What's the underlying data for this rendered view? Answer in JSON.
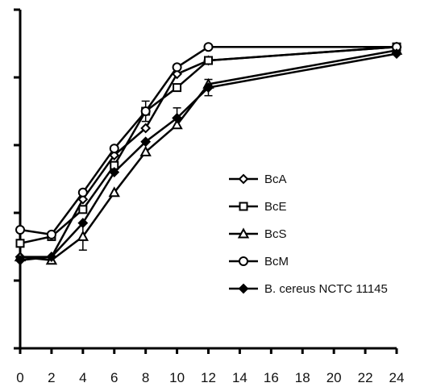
{
  "chart_data": {
    "type": "line",
    "title": "",
    "xlabel": "",
    "ylabel": "",
    "x_ticks": [
      "0",
      "2",
      "4",
      "6",
      "8",
      "10",
      "12",
      "14",
      "16",
      "18",
      "20",
      "22",
      "24"
    ],
    "xlim": [
      0,
      24
    ],
    "ylim": [
      0,
      5
    ],
    "y_tick_values": [
      0,
      1,
      2,
      3,
      4,
      5
    ],
    "y_tick_labels_shown": false,
    "grid": false,
    "legend_position": "center-right",
    "series": [
      {
        "name": "BcA",
        "marker": "diamond-open",
        "x": [
          0,
          2,
          4,
          6,
          8,
          10,
          12,
          24
        ],
        "y": [
          1.35,
          1.35,
          2.2,
          2.85,
          3.25,
          4.05,
          4.25,
          4.45
        ]
      },
      {
        "name": "BcE",
        "marker": "square-open",
        "x": [
          0,
          2,
          4,
          6,
          8,
          10,
          12,
          24
        ],
        "y": [
          1.55,
          1.65,
          2.05,
          2.7,
          3.5,
          3.85,
          4.25,
          4.45
        ]
      },
      {
        "name": "BcS",
        "marker": "triangle-open",
        "x": [
          0,
          2,
          4,
          6,
          8,
          10,
          12,
          24
        ],
        "y": [
          1.35,
          1.3,
          1.65,
          2.3,
          2.9,
          3.3,
          3.9,
          4.4
        ]
      },
      {
        "name": "BcM",
        "marker": "circle-open",
        "x": [
          0,
          2,
          4,
          6,
          8,
          10,
          12,
          24
        ],
        "y": [
          1.75,
          1.68,
          2.3,
          2.95,
          3.5,
          4.15,
          4.45,
          4.45
        ]
      },
      {
        "name": "B. cereus NCTC 11145",
        "marker": "diamond-filled",
        "x": [
          0,
          2,
          4,
          6,
          8,
          10,
          12,
          24
        ],
        "y": [
          1.3,
          1.35,
          1.85,
          2.6,
          3.05,
          3.4,
          3.85,
          4.35
        ]
      }
    ],
    "error_bars": {
      "x": [
        4,
        8,
        10,
        12
      ],
      "y": [
        1.65,
        3.5,
        3.4,
        3.85
      ],
      "err": [
        0.2,
        0.15,
        0.15,
        0.12
      ]
    }
  }
}
